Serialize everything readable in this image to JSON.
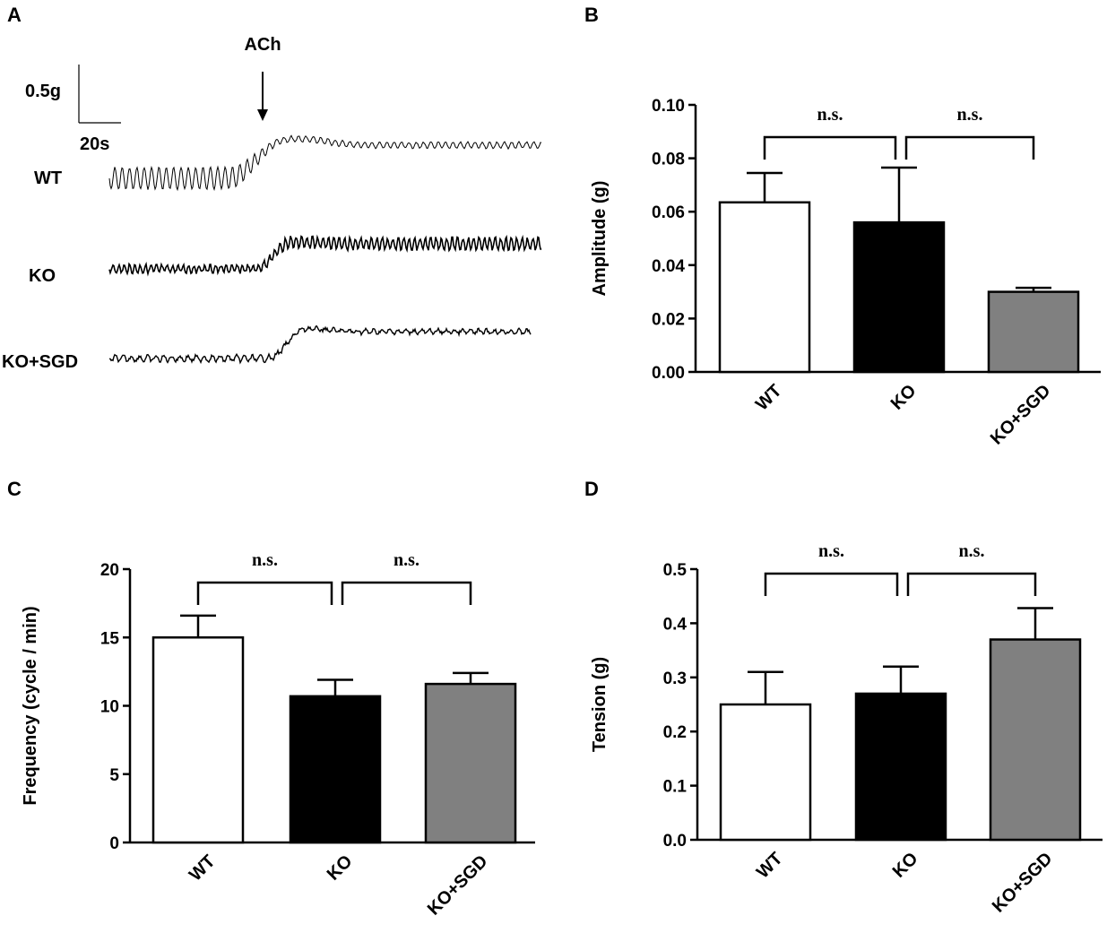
{
  "panels": {
    "A": {
      "letter": "A",
      "stimulus_label": "ACh",
      "scale_bar": {
        "vertical_label": "0.5g",
        "horizontal_label": "20s"
      },
      "traces": [
        {
          "label": "WT"
        },
        {
          "label": "KO"
        },
        {
          "label": "KO+SGD"
        }
      ]
    },
    "B": {
      "letter": "B"
    },
    "C": {
      "letter": "C"
    },
    "D": {
      "letter": "D"
    }
  },
  "chart_data": [
    {
      "panel": "B",
      "type": "bar",
      "categories": [
        "WT",
        "KO",
        "KO+SGD"
      ],
      "values": [
        0.0635,
        0.056,
        0.03
      ],
      "errors": [
        0.011,
        0.0205,
        0.0015
      ],
      "colors": [
        "#ffffff",
        "#000000",
        "#808080"
      ],
      "ylabel": "Amplitude (g)",
      "ylim": [
        0,
        0.1
      ],
      "yticks": [
        "0.00",
        "0.02",
        "0.04",
        "0.06",
        "0.08",
        "0.10"
      ],
      "comparisons": [
        {
          "from": 0,
          "to": 1,
          "label": "n.s."
        },
        {
          "from": 1,
          "to": 2,
          "label": "n.s."
        }
      ]
    },
    {
      "panel": "C",
      "type": "bar",
      "categories": [
        "WT",
        "KO",
        "KO+SGD"
      ],
      "values": [
        15.0,
        10.7,
        11.6
      ],
      "errors": [
        1.6,
        1.2,
        0.8
      ],
      "colors": [
        "#ffffff",
        "#000000",
        "#808080"
      ],
      "ylabel": "Frequency (cycle / min)",
      "ylim": [
        0,
        20
      ],
      "yticks": [
        "0",
        "5",
        "10",
        "15",
        "20"
      ],
      "comparisons": [
        {
          "from": 0,
          "to": 1,
          "label": "n.s."
        },
        {
          "from": 1,
          "to": 2,
          "label": "n.s."
        }
      ]
    },
    {
      "panel": "D",
      "type": "bar",
      "categories": [
        "WT",
        "KO",
        "KO+SGD"
      ],
      "values": [
        0.25,
        0.27,
        0.37
      ],
      "errors": [
        0.06,
        0.05,
        0.058
      ],
      "colors": [
        "#ffffff",
        "#000000",
        "#808080"
      ],
      "ylabel": "Tension (g)",
      "ylim": [
        0,
        0.5
      ],
      "yticks": [
        "0.0",
        "0.1",
        "0.2",
        "0.3",
        "0.4",
        "0.5"
      ],
      "comparisons": [
        {
          "from": 0,
          "to": 1,
          "label": "n.s."
        },
        {
          "from": 1,
          "to": 2,
          "label": "n.s."
        }
      ]
    }
  ]
}
